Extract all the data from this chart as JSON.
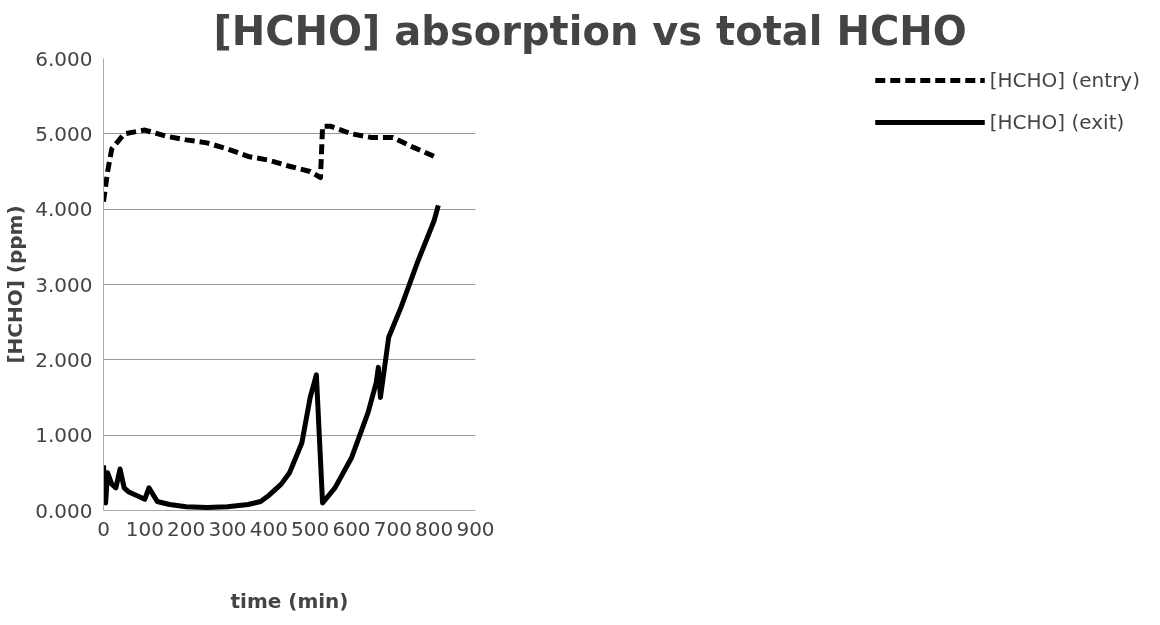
{
  "chart_data": {
    "type": "line",
    "title": "[HCHO] absorption vs total HCHO",
    "xlabel": "time (min)",
    "ylabel": "[HCHO] (ppm)",
    "xlim": [
      0,
      900
    ],
    "xticks": [
      0,
      100,
      200,
      300,
      400,
      500,
      600,
      700,
      800,
      900
    ],
    "ylim": [
      0,
      6
    ],
    "yticks": [
      {
        "value": 0,
        "label": "0.000"
      },
      {
        "value": 1,
        "label": "1.000"
      },
      {
        "value": 2,
        "label": "2.000"
      },
      {
        "value": 3,
        "label": "3.000"
      },
      {
        "value": 4,
        "label": "4.000"
      },
      {
        "value": 5,
        "label": "5.000"
      },
      {
        "value": 6,
        "label": "6.000"
      }
    ],
    "grid": "y",
    "legend": "right",
    "series": [
      {
        "name": "[HCHO] (entry)",
        "color": "#000000",
        "line_style": "dashed",
        "x": [
          0,
          10,
          20,
          50,
          100,
          150,
          200,
          250,
          300,
          350,
          400,
          450,
          500,
          525,
          530,
          550,
          600,
          650,
          700,
          750,
          800,
          810
        ],
        "values": [
          4.1,
          4.5,
          4.8,
          5.0,
          5.05,
          4.97,
          4.92,
          4.88,
          4.8,
          4.7,
          4.65,
          4.57,
          4.5,
          4.42,
          5.1,
          5.1,
          5.0,
          4.95,
          4.95,
          4.82,
          4.7,
          4.68
        ]
      },
      {
        "name": "[HCHO] (exit)",
        "color": "#000000",
        "line_style": "solid",
        "x": [
          0,
          5,
          10,
          20,
          30,
          40,
          50,
          60,
          80,
          100,
          110,
          130,
          160,
          200,
          250,
          300,
          350,
          380,
          400,
          430,
          450,
          480,
          500,
          515,
          530,
          560,
          600,
          640,
          660,
          665,
          670,
          690,
          720,
          760,
          800,
          810
        ],
        "values": [
          0.6,
          0.1,
          0.5,
          0.35,
          0.3,
          0.55,
          0.3,
          0.25,
          0.2,
          0.15,
          0.3,
          0.12,
          0.08,
          0.05,
          0.04,
          0.05,
          0.08,
          0.12,
          0.2,
          0.35,
          0.5,
          0.9,
          1.5,
          1.8,
          0.1,
          0.3,
          0.7,
          1.3,
          1.7,
          1.9,
          1.5,
          2.3,
          2.7,
          3.3,
          3.85,
          4.05
        ]
      }
    ]
  }
}
